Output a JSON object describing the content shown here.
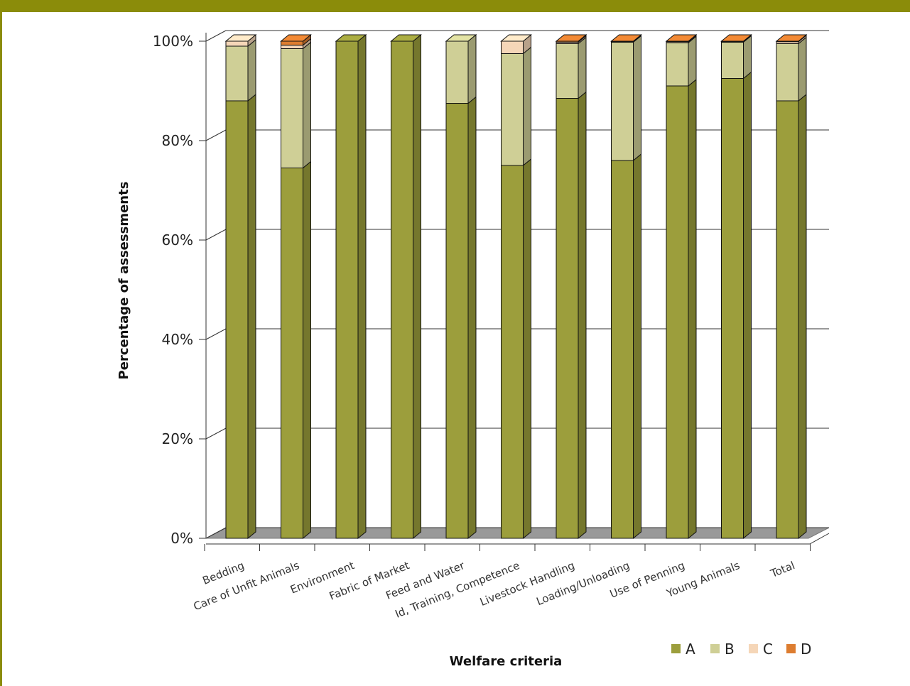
{
  "chart_data": {
    "type": "bar",
    "stacked": true,
    "three_d": true,
    "xlabel": "Welfare criteria",
    "ylabel": "Percentage of assessments",
    "ylim": [
      0,
      100
    ],
    "y_ticks": [
      "0%",
      "20%",
      "40%",
      "60%",
      "80%",
      "100%"
    ],
    "grid": true,
    "legend_position": "bottom-right",
    "categories": [
      "Bedding",
      "Care of Unfit Animals",
      "Environment",
      "Fabric of Market",
      "Feed and Water",
      "Id, Training, Competence",
      "Livestock Handling",
      "Loading/Unloading",
      "Use of Penning",
      "Young Animals",
      "Total"
    ],
    "series": [
      {
        "name": "A",
        "color": "#9c9e3c",
        "values": [
          88,
          74.5,
          100,
          100,
          87.5,
          75,
          88.5,
          76,
          91,
          92.5,
          88
        ]
      },
      {
        "name": "B",
        "color": "#cfcf96",
        "values": [
          11,
          24,
          0,
          0,
          12.5,
          22.5,
          11,
          23.8,
          8.7,
          7.3,
          11.5
        ]
      },
      {
        "name": "C",
        "color": "#f5d6b8",
        "values": [
          1,
          0.7,
          0,
          0,
          0,
          2.5,
          0.3,
          0.1,
          0.2,
          0.1,
          0.4
        ]
      },
      {
        "name": "D",
        "color": "#dd7d30",
        "values": [
          0,
          0.8,
          0,
          0,
          0,
          0,
          0.2,
          0.1,
          0.1,
          0.1,
          0.1
        ]
      }
    ]
  },
  "colors": {
    "band": "#8b8c0a",
    "floor": "#999999",
    "grid": "#333333"
  }
}
